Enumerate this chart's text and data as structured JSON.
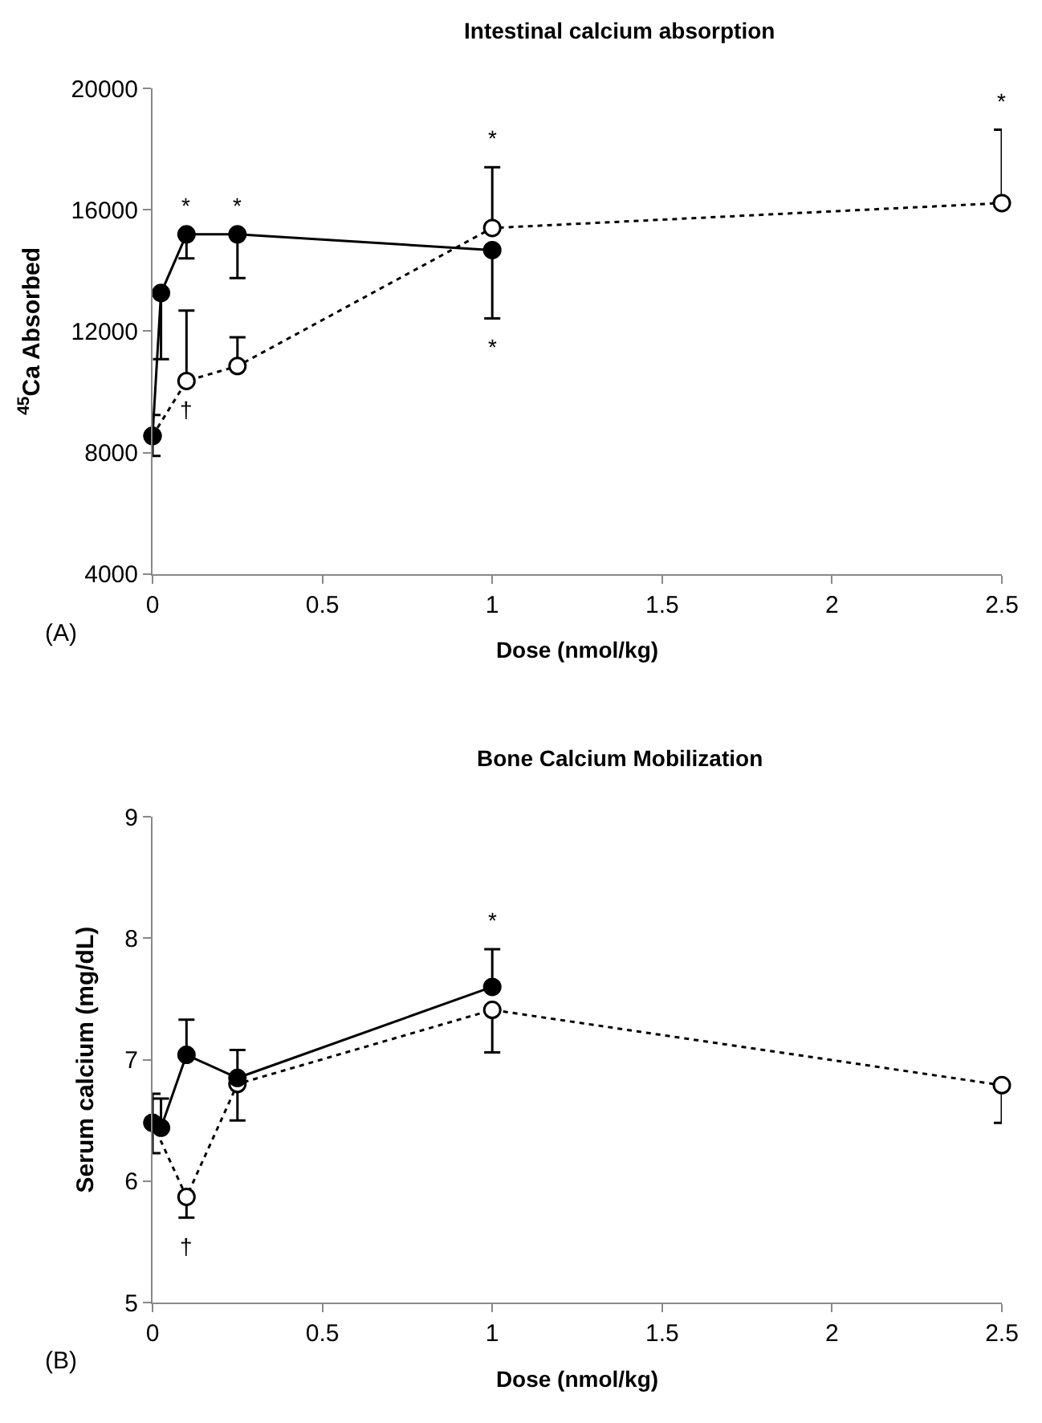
{
  "chart_data": [
    {
      "type": "line",
      "title": "Intestinal calcium absorption",
      "xlabel": "Dose (nmol/kg)",
      "ylabel": "$^{45}$Ca Absorbed",
      "xlim": [
        0,
        2.5
      ],
      "xticks": [
        0,
        0.5,
        1,
        1.5,
        2,
        2.5
      ],
      "ylim": [
        4000,
        20000
      ],
      "yticks": [
        4000,
        8000,
        12000,
        16000,
        20000
      ],
      "series": [
        {
          "color": "#000000",
          "marker": "circle",
          "line_style": "solid",
          "x": [
            0,
            0.025,
            0.1,
            0.25,
            1
          ],
          "values": [
            8550,
            13260,
            15190,
            15190,
            14670
          ],
          "errors": [
            [
              7890,
              9240
            ],
            [
              11080,
              13260
            ],
            [
              14400,
              15190
            ],
            [
              13750,
              15190
            ],
            [
              12420,
              14670
            ]
          ]
        },
        {
          "color": "#000000",
          "marker": "circle-open",
          "line_style": "dotted",
          "x": [
            0,
            0.1,
            0.25,
            1,
            2.5
          ],
          "values": [
            8550,
            10360,
            10850,
            15400,
            16220
          ],
          "errors": [
            null,
            [
              10360,
              12680
            ],
            [
              10850,
              11800
            ],
            [
              15400,
              17400
            ],
            [
              16220,
              18640
            ]
          ]
        }
      ],
      "annotations": [
        {
          "text": "*",
          "x": 0.1,
          "y": 15190
        },
        {
          "text": "*",
          "x": 0.25,
          "y": 15190
        },
        {
          "text": "*",
          "x": 1,
          "y": 17400
        },
        {
          "text": "*",
          "x": 1,
          "y": 12420
        },
        {
          "text": "*",
          "x": 2.5,
          "y": 18640
        },
        {
          "text": "†",
          "x": 0.1,
          "y": 10360
        },
        "(A)"
      ]
    },
    {
      "type": "line",
      "title": "Bone Calcium Mobilization",
      "xlabel": "Dose (nmol/kg)",
      "ylabel": "Serum calcium (mg/dL)",
      "xlim": [
        0,
        2.5
      ],
      "xticks": [
        0,
        0.5,
        1,
        1.5,
        2,
        2.5
      ],
      "ylim": [
        5,
        9
      ],
      "yticks": [
        5,
        6,
        7,
        8,
        9
      ],
      "series": [
        {
          "color": "#000000",
          "marker": "circle",
          "line_style": "solid",
          "x": [
            0,
            0.025,
            0.1,
            0.25,
            1
          ],
          "values": [
            6.48,
            6.44,
            7.04,
            6.85,
            7.6
          ],
          "errors": [
            [
              6.23,
              6.72
            ],
            [
              6.44,
              6.68
            ],
            [
              7.04,
              7.33
            ],
            [
              6.85,
              7.08
            ],
            [
              7.6,
              7.91
            ]
          ]
        },
        {
          "color": "#000000",
          "marker": "circle-open",
          "line_style": "dotted",
          "x": [
            0,
            0.1,
            0.25,
            1,
            2.5
          ],
          "values": [
            6.48,
            5.87,
            6.8,
            7.41,
            6.79
          ],
          "errors": [
            null,
            [
              5.7,
              5.87
            ],
            [
              6.5,
              6.8
            ],
            [
              7.06,
              7.41
            ],
            [
              6.48,
              6.79
            ]
          ]
        }
      ],
      "annotations": [
        {
          "text": "*",
          "x": 1,
          "y": 7.91
        },
        {
          "text": "†",
          "x": 0.1,
          "y": 5.7
        },
        "(B)"
      ]
    }
  ]
}
